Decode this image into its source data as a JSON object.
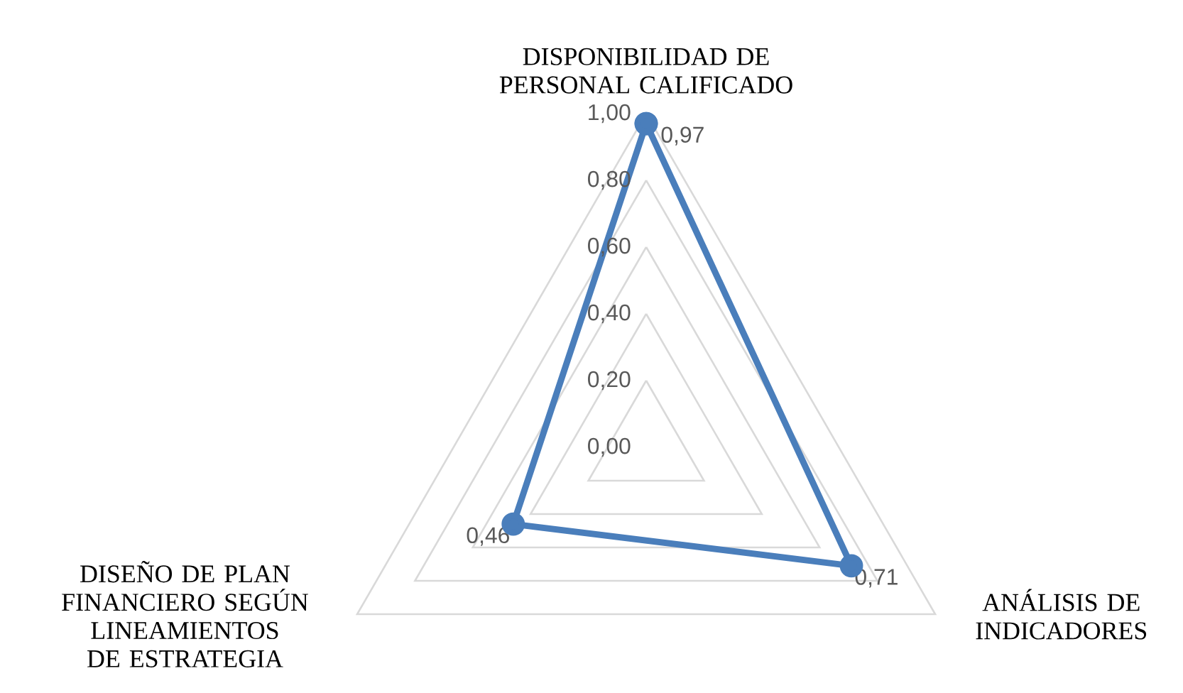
{
  "chart_data": {
    "type": "radar",
    "categories": [
      "DISPONIBILIDAD DE PERSONAL CALIFICADO",
      "ANÁLISIS DE INDICADORES",
      "DISEÑO DE PLAN FINANCIERO SEGÚN LINEAMIENTOS DE ESTRATEGIA"
    ],
    "series": [
      {
        "color": "#4a7ebb",
        "values": [
          0.97,
          0.71,
          0.46
        ],
        "value_labels": [
          "0,97",
          "0,71",
          "0,46"
        ]
      }
    ],
    "ylim": [
      0,
      1
    ],
    "yticks": [
      {
        "value": 0,
        "label": "0,00"
      },
      {
        "value": 0.2,
        "label": "0,20"
      },
      {
        "value": 0.4,
        "label": "0,40"
      },
      {
        "value": 0.6,
        "label": "0,60"
      },
      {
        "value": 0.8,
        "label": "0,80"
      },
      {
        "value": 1,
        "label": "1,00"
      }
    ],
    "grid": true,
    "marker": "circle"
  }
}
